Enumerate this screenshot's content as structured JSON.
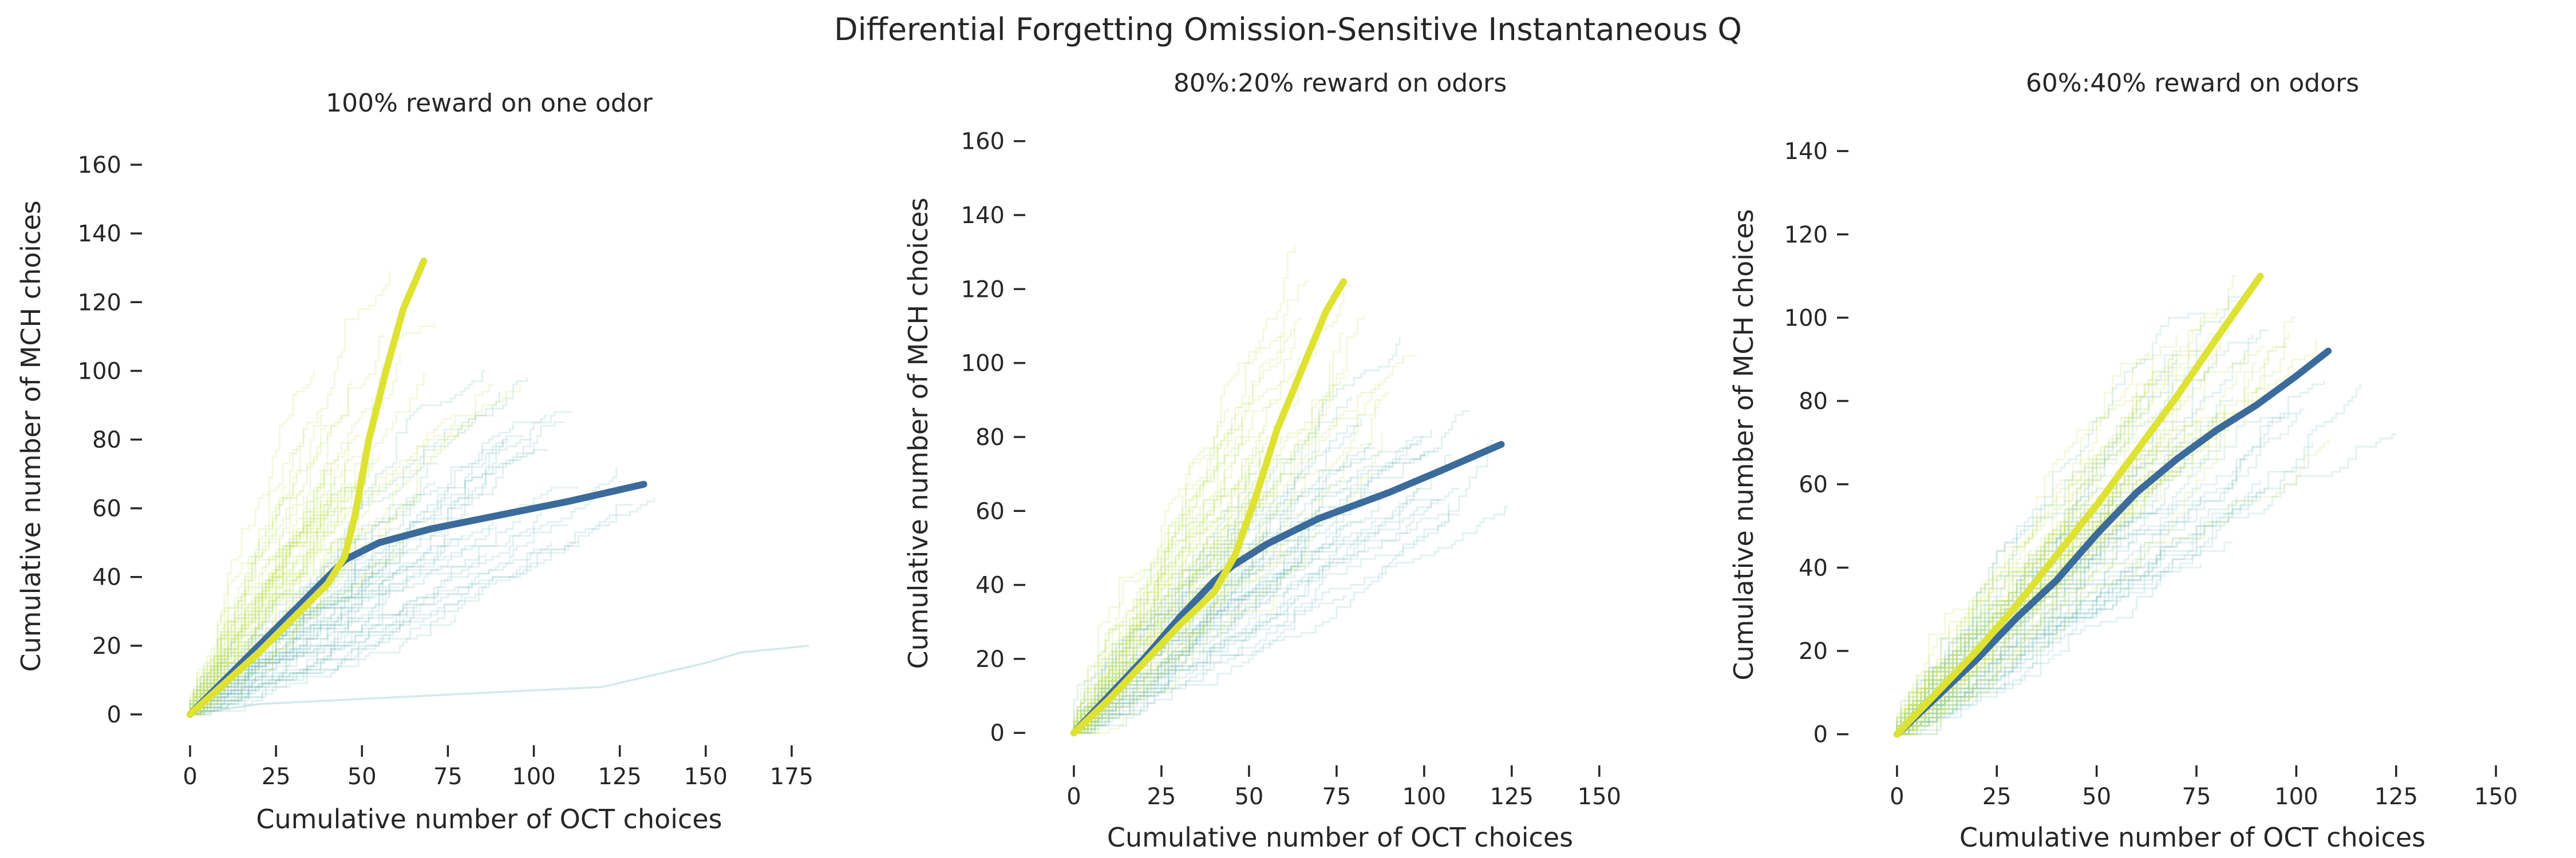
{
  "figure_title": "Differential Forgetting Omission-Sensitive Instantaneous Q",
  "colors": {
    "blue": "#3b6b9a",
    "yellow": "#dde233",
    "teal_faint": "#7fbfbf",
    "yellow_faint": "#c6e26a"
  },
  "chart_data": [
    {
      "type": "line",
      "title": "100% reward on one odor",
      "xlabel": "Cumulative number of OCT choices",
      "ylabel": "Cumulative number of MCH choices",
      "xlim": [
        -8,
        182
      ],
      "ylim": [
        -6,
        168
      ],
      "xticks": [
        0,
        25,
        50,
        75,
        100,
        125,
        150,
        175
      ],
      "yticks": [
        0,
        20,
        40,
        60,
        80,
        100,
        120,
        140,
        160
      ],
      "series": [
        {
          "role": "mean-blue",
          "color": "#3b6b9a",
          "x": [
            0,
            10,
            20,
            30,
            40,
            45,
            55,
            70,
            90,
            110,
            132
          ],
          "y": [
            0,
            10,
            20,
            30,
            40,
            45,
            50,
            54,
            58,
            62,
            67
          ]
        },
        {
          "role": "mean-yellow",
          "color": "#dde233",
          "x": [
            0,
            10,
            20,
            30,
            40,
            45,
            48,
            52,
            57,
            62,
            68
          ],
          "y": [
            0,
            9,
            18,
            28,
            38,
            46,
            58,
            80,
            100,
            118,
            132
          ]
        }
      ],
      "bundles": [
        {
          "color": "#7fbfbf",
          "cap": 200,
          "xmax": 160,
          "ymax": 100,
          "slope_k": 0.5,
          "slope_a": 1.0,
          "slope_b": 0.45
        },
        {
          "color": "#c6e26a",
          "cap": 200,
          "xmax": 110,
          "ymax": 160,
          "slope_k": 40,
          "slope_a": 0.95,
          "slope_b": 2.2
        }
      ],
      "outlier": {
        "x": [
          0,
          20,
          60,
          120,
          150,
          160,
          180
        ],
        "y": [
          0,
          3,
          5,
          8,
          15,
          18,
          20
        ]
      }
    },
    {
      "type": "line",
      "title": "80%:20% reward on odors",
      "xlabel": "Cumulative number of OCT choices",
      "ylabel": "Cumulative number of MCH choices",
      "xlim": [
        -8,
        160
      ],
      "ylim": [
        -6,
        168
      ],
      "xticks": [
        0,
        25,
        50,
        75,
        100,
        125,
        150
      ],
      "yticks": [
        0,
        20,
        40,
        60,
        80,
        100,
        120,
        140,
        160
      ],
      "series": [
        {
          "role": "mean-blue",
          "color": "#3b6b9a",
          "x": [
            0,
            10,
            20,
            30,
            40,
            45,
            55,
            70,
            90,
            105,
            122
          ],
          "y": [
            0,
            10,
            20,
            31,
            41,
            45,
            51,
            58,
            65,
            71,
            78
          ]
        },
        {
          "role": "mean-yellow",
          "color": "#dde233",
          "x": [
            0,
            10,
            20,
            30,
            40,
            46,
            52,
            58,
            65,
            72,
            77
          ],
          "y": [
            0,
            9,
            19,
            29,
            38,
            48,
            64,
            82,
            98,
            114,
            122
          ]
        }
      ],
      "bundles": [
        {
          "color": "#7fbfbf",
          "cap": 200,
          "xmax": 150,
          "ymax": 110,
          "slope_k": 0.5,
          "slope_a": 1.05,
          "slope_b": 0.55
        },
        {
          "color": "#c6e26a",
          "cap": 200,
          "xmax": 100,
          "ymax": 155,
          "slope_k": 40,
          "slope_a": 0.95,
          "slope_b": 1.8
        }
      ]
    },
    {
      "type": "line",
      "title": "60%:40% reward on odors",
      "xlabel": "Cumulative number of OCT choices",
      "ylabel": "Cumulative number of MCH choices",
      "xlim": [
        -7,
        155
      ],
      "ylim": [
        -5,
        144
      ],
      "xticks": [
        0,
        25,
        50,
        75,
        100,
        125,
        150
      ],
      "yticks": [
        0,
        20,
        40,
        60,
        80,
        100,
        120,
        140
      ],
      "series": [
        {
          "role": "mean-blue",
          "color": "#3b6b9a",
          "x": [
            0,
            10,
            20,
            30,
            40,
            50,
            60,
            70,
            80,
            90,
            100,
            108
          ],
          "y": [
            0,
            9,
            18,
            28,
            37,
            48,
            58,
            66,
            73,
            79,
            86,
            92
          ]
        },
        {
          "role": "mean-yellow",
          "color": "#dde233",
          "x": [
            0,
            10,
            20,
            30,
            40,
            50,
            60,
            70,
            80,
            91
          ],
          "y": [
            0,
            10,
            20,
            31,
            43,
            55,
            68,
            81,
            95,
            110
          ]
        }
      ],
      "bundles": [
        {
          "color": "#7fbfbf",
          "cap": 200,
          "xmax": 145,
          "ymax": 140,
          "slope_k": 0.8,
          "slope_a": 1.1,
          "slope_b": 0.65
        },
        {
          "color": "#c6e26a",
          "cap": 200,
          "xmax": 130,
          "ymax": 135,
          "slope_k": 1.2,
          "slope_a": 1.25,
          "slope_b": 0.8
        }
      ]
    }
  ]
}
